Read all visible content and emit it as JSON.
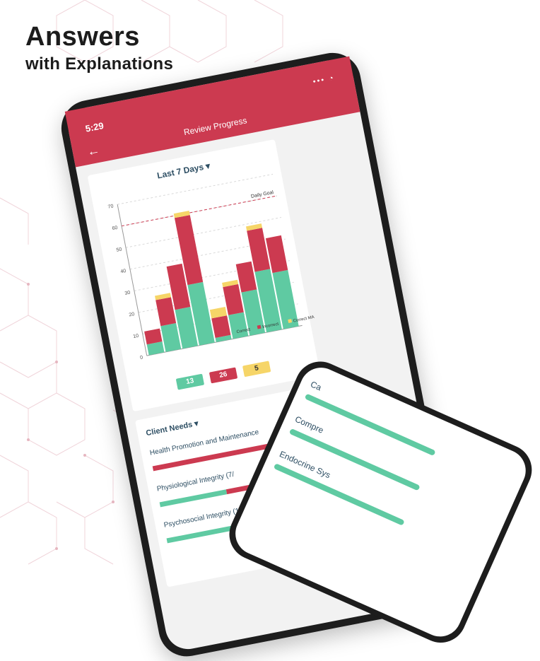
{
  "headline": {
    "line1": "Answers",
    "line2": "with Explanations"
  },
  "app": {
    "time": "5:29",
    "status_icons": "••• ◔",
    "back_icon": "←",
    "title": "Review Progress"
  },
  "range_label": "Last 7 Days ▾",
  "chart_data": {
    "type": "bar",
    "stacked": true,
    "categories": [
      "",
      "",
      "",
      "",
      "",
      "",
      "",
      "",
      ""
    ],
    "series": [
      {
        "name": "Correct",
        "color": "#5fcaa2",
        "values": [
          5,
          12,
          18,
          28,
          2,
          11,
          20,
          28,
          26
        ]
      },
      {
        "name": "Incorrect",
        "color": "#cc3a50",
        "values": [
          6,
          12,
          20,
          31,
          9,
          13,
          13,
          19,
          16
        ]
      },
      {
        "name": "Correct MA",
        "color": "#f6d568",
        "values": [
          0,
          2,
          0,
          2,
          4,
          2,
          0,
          2,
          0
        ]
      }
    ],
    "ylim": [
      0,
      70
    ],
    "yticks": [
      0,
      10,
      20,
      30,
      40,
      50,
      60,
      70
    ],
    "daily_goal": 60,
    "daily_goal_label": "Daily Goal",
    "grid": true,
    "legend": "bottom-right"
  },
  "summary": {
    "correct": "13",
    "incorrect": "26",
    "correct_ma": "5"
  },
  "client_needs": {
    "title": "Client Needs ▾",
    "items": [
      {
        "label": "Health Promotion and Maintenance",
        "correct": 0.0
      },
      {
        "label": "Physiological Integrity (7/",
        "correct": 0.4
      },
      {
        "label": "Psychosocial Integrity (1/1",
        "correct": 0.6
      }
    ]
  },
  "second_phone": {
    "items": [
      {
        "label": "Ca"
      },
      {
        "label": "Compre"
      },
      {
        "label": "Endocrine Sys"
      }
    ]
  },
  "colors": {
    "accent": "#cc3a50",
    "correct": "#5fcaa2",
    "incorrect": "#cc3a50",
    "ma": "#f6d568",
    "text": "#2d4e63"
  }
}
